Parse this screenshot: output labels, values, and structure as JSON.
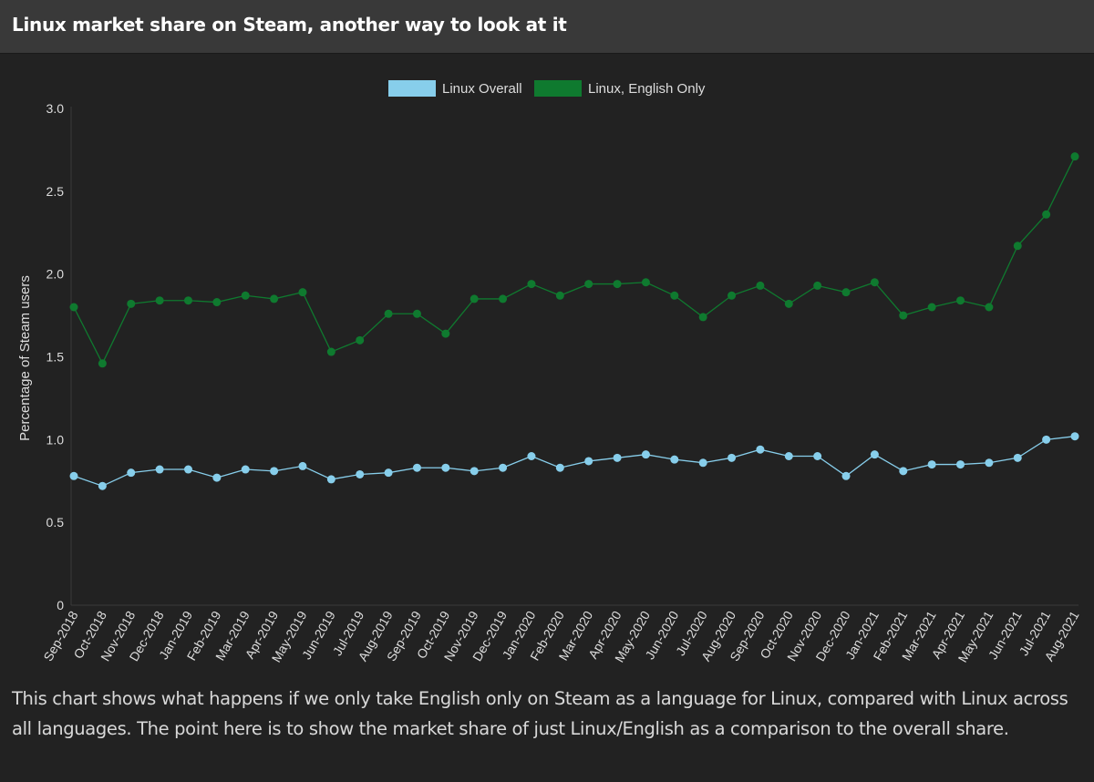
{
  "header": {
    "title": "Linux market share on Steam, another way to look at it"
  },
  "colors": {
    "background": "#222222",
    "header_bg": "#393939",
    "linux_overall": "#87ceeb",
    "linux_english": "#0f7a2f"
  },
  "chart_data": {
    "type": "line",
    "ylabel": "Percentage of Steam users",
    "ylim": [
      0,
      3.0
    ],
    "yticks": [
      "0",
      "0.5",
      "1.0",
      "1.5",
      "2.0",
      "2.5",
      "3.0"
    ],
    "legend_position": "top-center",
    "grid": false,
    "categories": [
      "Sep-2018",
      "Oct-2018",
      "Nov-2018",
      "Dec-2018",
      "Jan-2019",
      "Feb-2019",
      "Mar-2019",
      "Apr-2019",
      "May-2019",
      "Jun-2019",
      "Jul-2019",
      "Aug-2019",
      "Sep-2019",
      "Oct-2019",
      "Nov-2019",
      "Dec-2019",
      "Jan-2020",
      "Feb-2020",
      "Mar-2020",
      "Apr-2020",
      "May-2020",
      "Jun-2020",
      "Jul-2020",
      "Aug-2020",
      "Sep-2020",
      "Oct-2020",
      "Nov-2020",
      "Dec-2020",
      "Jan-2021",
      "Feb-2021",
      "Mar-2021",
      "Apr-2021",
      "May-2021",
      "Jun-2021",
      "Jul-2021",
      "Aug-2021"
    ],
    "series": [
      {
        "name": "Linux Overall",
        "color": "#87ceeb",
        "values": [
          0.78,
          0.72,
          0.8,
          0.82,
          0.82,
          0.77,
          0.82,
          0.81,
          0.84,
          0.76,
          0.79,
          0.8,
          0.83,
          0.83,
          0.81,
          0.83,
          0.9,
          0.83,
          0.87,
          0.89,
          0.91,
          0.88,
          0.86,
          0.89,
          0.94,
          0.9,
          0.9,
          0.78,
          0.91,
          0.81,
          0.85,
          0.85,
          0.86,
          0.89,
          1.0,
          1.02
        ]
      },
      {
        "name": "Linux, English Only",
        "color": "#0f7a2f",
        "values": [
          1.8,
          1.46,
          1.82,
          1.84,
          1.84,
          1.83,
          1.87,
          1.85,
          1.89,
          1.53,
          1.6,
          1.76,
          1.76,
          1.64,
          1.85,
          1.85,
          1.94,
          1.87,
          1.94,
          1.94,
          1.95,
          1.87,
          1.74,
          1.87,
          1.93,
          1.82,
          1.93,
          1.89,
          1.95,
          1.75,
          1.8,
          1.84,
          1.8,
          2.17,
          2.36,
          2.71
        ]
      }
    ]
  },
  "caption": "This chart shows what happens if we only take English only on Steam as a language for Linux, compared with Linux across all languages. The point here is to show the market share of just Linux/English as a comparison to the overall share."
}
